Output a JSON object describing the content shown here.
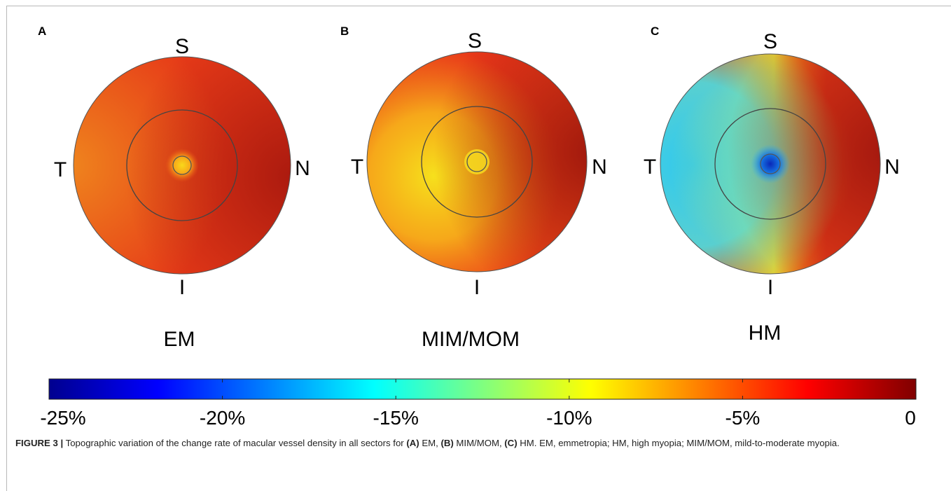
{
  "figure": {
    "panels": [
      {
        "letter": "A",
        "group": "EM",
        "directions": {
          "superior": "S",
          "temporal": "T",
          "nasal": "N",
          "inferior": "I"
        },
        "palette": {
          "base": "#e63a18",
          "temporal": "#f08c1e",
          "nasal": "#b01a10",
          "center": "#f7b010",
          "center_core": "#f9d81a"
        }
      },
      {
        "letter": "B",
        "group": "MIM/MOM",
        "directions": {
          "superior": "S",
          "temporal": "T",
          "nasal": "N",
          "inferior": "I"
        },
        "palette": {
          "base": "#ee4a18",
          "temporal": "#f7b518",
          "nasal": "#a8180e",
          "center": "#f9d01a",
          "center_core": "#f6ee1e"
        }
      },
      {
        "letter": "C",
        "group": "HM",
        "directions": {
          "superior": "S",
          "temporal": "T",
          "nasal": "N",
          "inferior": "I"
        },
        "palette": {
          "base": "#e23a18",
          "temporal": "#30d6f0",
          "nasal": "#a8180e",
          "center": "#22a0ee",
          "center_core": "#1038c8"
        }
      }
    ],
    "colorbar": {
      "ticks": [
        "-25%",
        "-20%",
        "-15%",
        "-10%",
        "-5%",
        "0"
      ],
      "range": [
        -25,
        0
      ],
      "colormap": "jet",
      "stops": [
        "#00008f",
        "#0000ff",
        "#00ffff",
        "#ffff00",
        "#ff0000",
        "#800000"
      ]
    }
  },
  "caption": {
    "label": "FIGURE 3 |",
    "intro": " Topographic variation of the change rate of macular vessel density in all sectors for ",
    "a_ref": "(A)",
    "a_text": " EM, ",
    "b_ref": "(B)",
    "b_text": " MIM/MOM, ",
    "c_ref": "(C)",
    "c_text": " HM. EM, emmetropia; HM, high myopia; MIM/MOM, mild-to-moderate myopia."
  }
}
